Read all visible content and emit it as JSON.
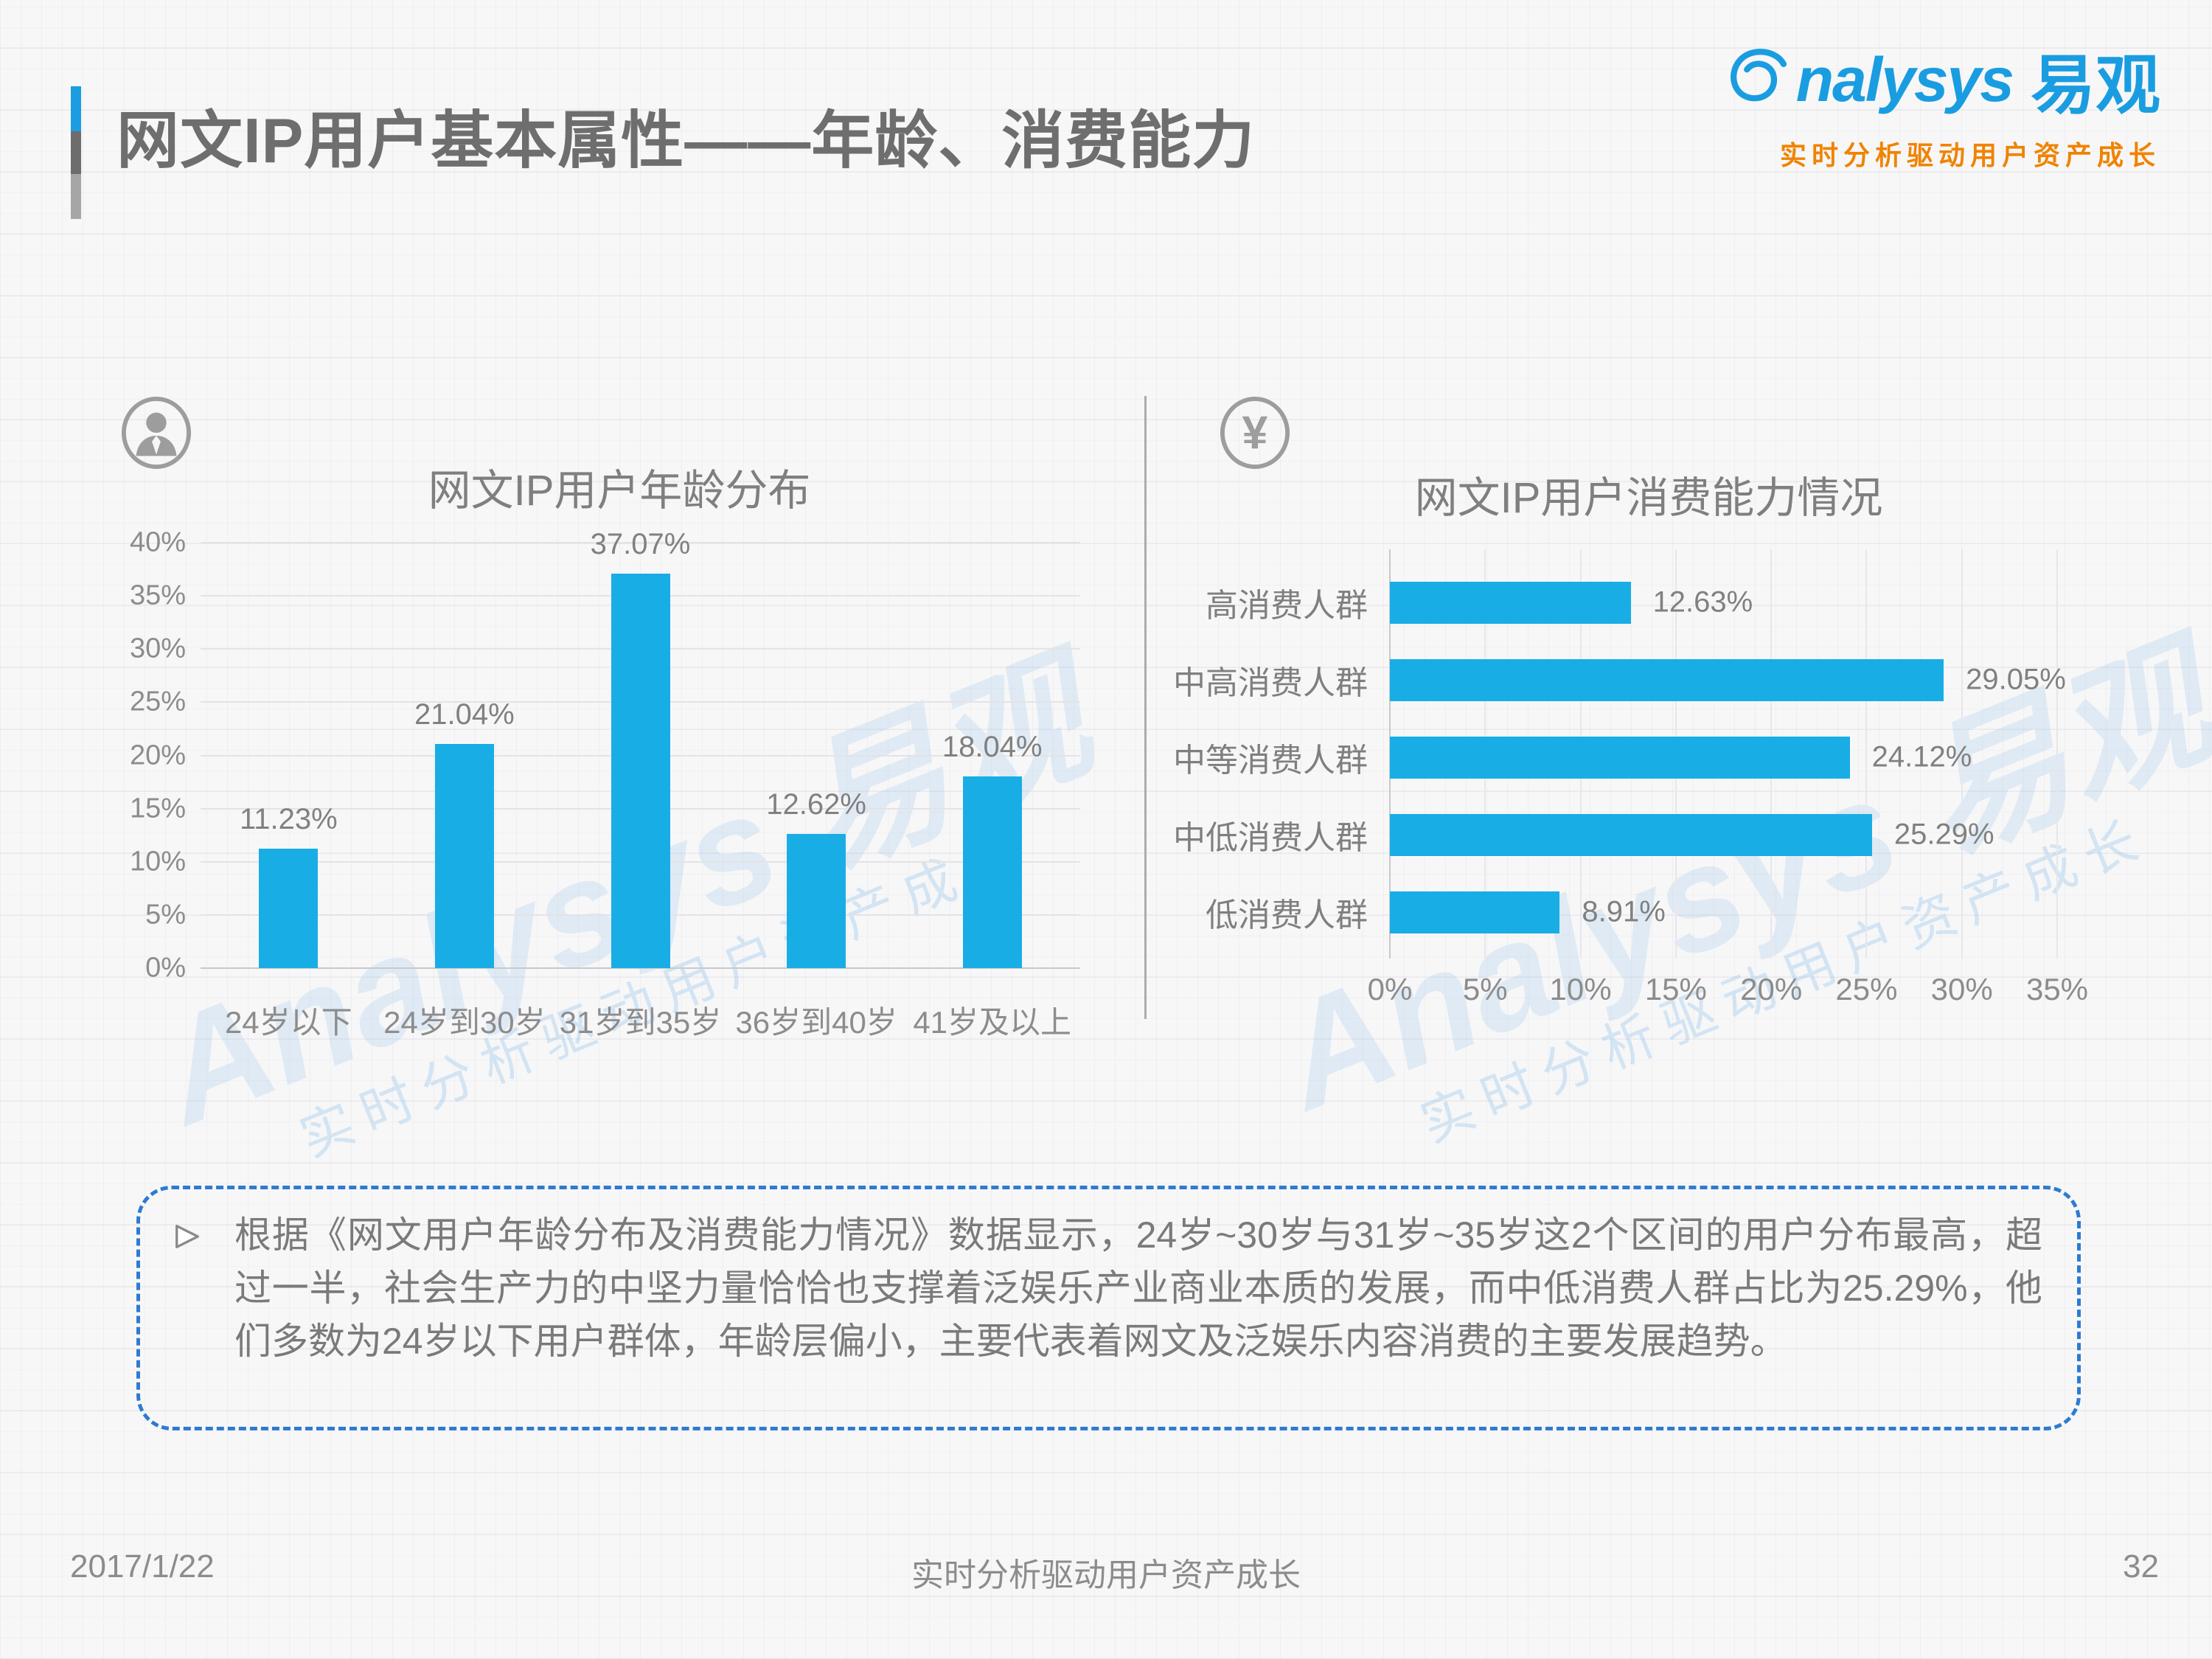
{
  "header": {
    "title": "网文IP用户基本属性——年龄、消费能力"
  },
  "logo": {
    "brand_en": "nalysys",
    "brand_cn": "易观",
    "tagline": "实时分析驱动用户资产成长"
  },
  "watermark": {
    "line1": "Analysys 易观",
    "line2": "实时分析驱动用户资产成长"
  },
  "colors": {
    "bar_blue": "#19ade6",
    "logo_blue": "#1a9de0",
    "tagline_orange": "#f08300",
    "dash_border_blue": "#2e7bd0",
    "text_gray": "#7f7f7f"
  },
  "chart_data": [
    {
      "type": "bar",
      "title": "网文IP用户年龄分布",
      "icon": "person-icon",
      "categories": [
        "24岁以下",
        "24岁到30岁",
        "31岁到35岁",
        "36岁到40岁",
        "41岁及以上"
      ],
      "values": [
        11.23,
        21.04,
        37.07,
        12.62,
        18.04
      ],
      "labels": [
        "11.23%",
        "21.04%",
        "37.07%",
        "12.62%",
        "18.04%"
      ],
      "ylabel": "",
      "xlabel": "",
      "ylim": [
        0,
        40
      ],
      "y_ticks": [
        0,
        5,
        10,
        15,
        20,
        25,
        30,
        35,
        40
      ],
      "grid": true,
      "legend": "none"
    },
    {
      "type": "bar",
      "orientation": "horizontal",
      "title": "网文IP用户消费能力情况",
      "icon": "yuan-icon",
      "categories": [
        "高消费人群",
        "中高消费人群",
        "中等消费人群",
        "中低消费人群",
        "低消费人群"
      ],
      "values": [
        12.63,
        29.05,
        24.12,
        25.29,
        8.91
      ],
      "labels": [
        "12.63%",
        "29.05%",
        "24.12%",
        "25.29%",
        "8.91%"
      ],
      "xlim": [
        0,
        35
      ],
      "x_ticks": [
        0,
        5,
        10,
        15,
        20,
        25,
        30,
        35
      ],
      "grid": true,
      "legend": "none"
    }
  ],
  "note": {
    "text": "根据《网文用户年龄分布及消费能力情况》数据显示，24岁~30岁与31岁~35岁这2个区间的用户分布最高，超过一半，社会生产力的中坚力量恰恰也支撑着泛娱乐产业商业本质的发展，而中低消费人群占比为25.29%，他们多数为24岁以下用户群体，年龄层偏小，主要代表着网文及泛娱乐内容消费的主要发展趋势。"
  },
  "footer": {
    "date": "2017/1/22",
    "center": "实时分析驱动用户资产成长",
    "page": "32"
  }
}
